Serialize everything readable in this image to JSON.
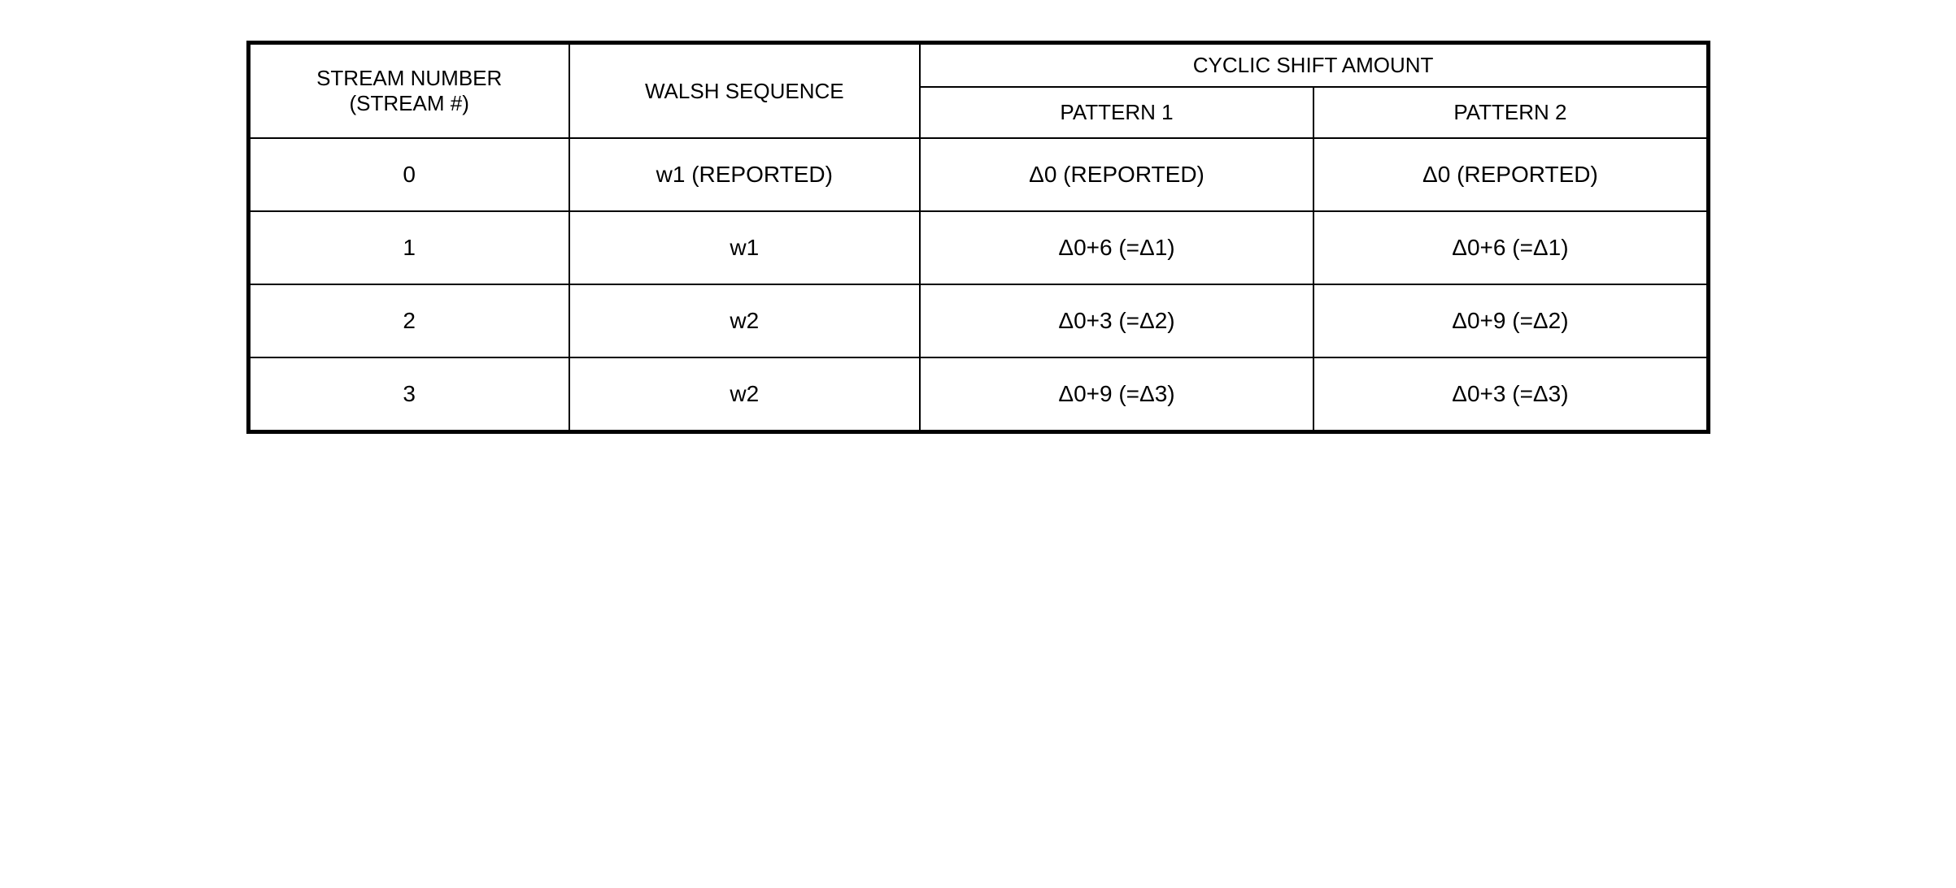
{
  "table": {
    "headers": {
      "stream_number": "STREAM NUMBER\n(STREAM #)",
      "walsh_sequence": "WALSH SEQUENCE",
      "cyclic_shift_amount": "CYCLIC SHIFT AMOUNT",
      "pattern1": "PATTERN 1",
      "pattern2": "PATTERN 2"
    },
    "rows": [
      {
        "stream": "0",
        "walsh": "w1 (REPORTED)",
        "p1": "Δ0 (REPORTED)",
        "p2": "Δ0 (REPORTED)"
      },
      {
        "stream": "1",
        "walsh": "w1",
        "p1": "Δ0+6 (=Δ1)",
        "p2": "Δ0+6 (=Δ1)"
      },
      {
        "stream": "2",
        "walsh": "w2",
        "p1": "Δ0+3 (=Δ2)",
        "p2": "Δ0+9 (=Δ2)"
      },
      {
        "stream": "3",
        "walsh": "w2",
        "p1": "Δ0+9 (=Δ3)",
        "p2": "Δ0+3 (=Δ3)"
      }
    ],
    "styling": {
      "border_color": "#000000",
      "outer_border_width": 5,
      "inner_border_width": 2,
      "background_color": "#ffffff",
      "text_color": "#000000",
      "font_size_header": 26,
      "font_size_cell": 28,
      "font_family": "Arial, Helvetica, sans-serif",
      "column_widths": {
        "stream": "22%",
        "walsh": "24%",
        "pattern1": "27%",
        "pattern2": "27%"
      }
    }
  }
}
